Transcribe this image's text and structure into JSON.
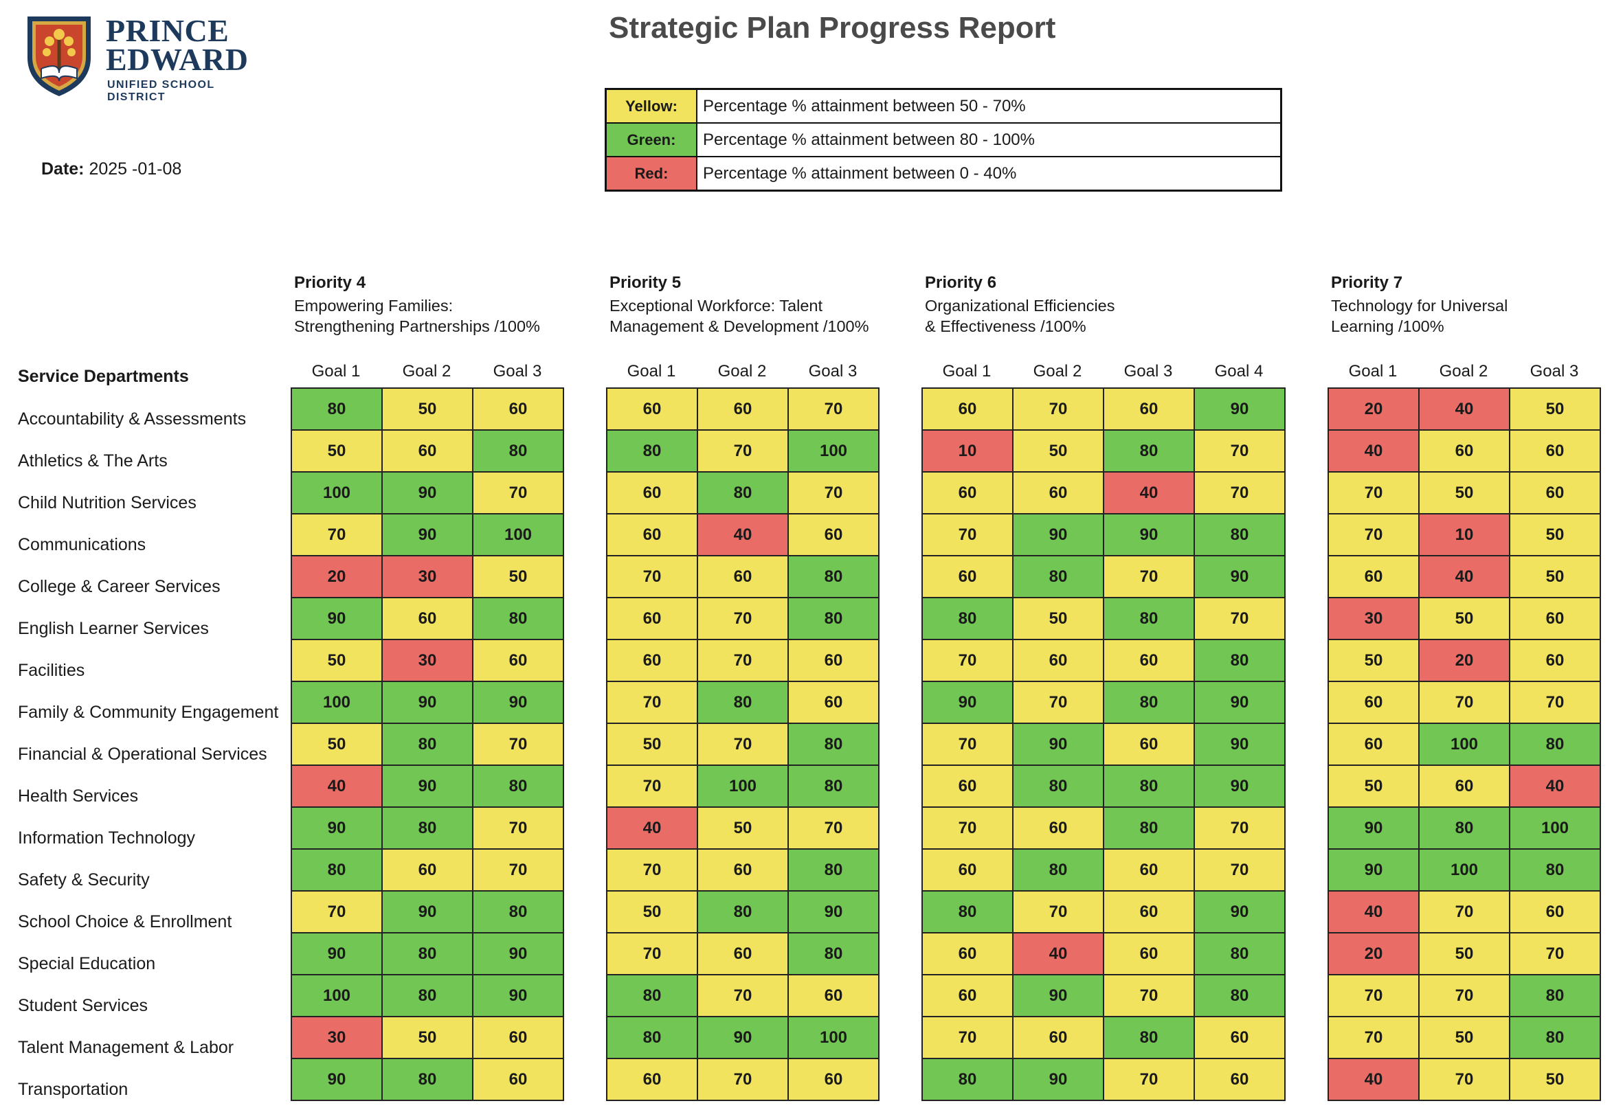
{
  "logo": {
    "line1": "PRINCE",
    "line2": "EDWARD",
    "line3": "UNIFIED SCHOOL DISTRICT"
  },
  "date": {
    "label": "Date:",
    "value": "2025 -01-08"
  },
  "title": "Strategic Plan Progress Report",
  "legend": [
    {
      "key": "Yellow:",
      "text": "Percentage % attainment between 50 - 70%",
      "color": "#f1e35e"
    },
    {
      "key": "Green:",
      "text": "Percentage % attainment between 80 - 100%",
      "color": "#72c653"
    },
    {
      "key": "Red:",
      "text": "Percentage % attainment between 0 - 40%",
      "color": "#ea6c66"
    }
  ],
  "departments_header": "Service Departments",
  "departments": [
    "Accountability & Assessments",
    "Athletics & The Arts",
    "Child Nutrition Services",
    "Communications",
    "College & Career Services",
    "English Learner Services",
    "Facilities",
    "Family & Community Engagement",
    "Financial & Operational Services",
    "Health Services",
    "Information Technology",
    "Safety & Security",
    "School Choice & Enrollment",
    "Special Education",
    "Student Services",
    "Talent Management & Labor",
    "Transportation"
  ],
  "priorities": [
    {
      "title": "Priority 4",
      "desc": [
        "Empowering Families:",
        "Strengthening Partnerships /100%"
      ],
      "goals": [
        "Goal 1",
        "Goal 2",
        "Goal 3"
      ],
      "values": [
        [
          80,
          50,
          60
        ],
        [
          50,
          60,
          80
        ],
        [
          100,
          90,
          70
        ],
        [
          70,
          90,
          100
        ],
        [
          20,
          30,
          50
        ],
        [
          90,
          60,
          80
        ],
        [
          50,
          30,
          60
        ],
        [
          100,
          90,
          90
        ],
        [
          50,
          80,
          70
        ],
        [
          40,
          90,
          80
        ],
        [
          90,
          80,
          70
        ],
        [
          80,
          60,
          70
        ],
        [
          70,
          90,
          80
        ],
        [
          90,
          80,
          90
        ],
        [
          100,
          80,
          90
        ],
        [
          30,
          50,
          60
        ],
        [
          90,
          80,
          60
        ]
      ]
    },
    {
      "title": "Priority 5",
      "desc": [
        "Exceptional Workforce: Talent",
        "Management & Development /100%"
      ],
      "goals": [
        "Goal 1",
        "Goal 2",
        "Goal 3"
      ],
      "values": [
        [
          60,
          60,
          70
        ],
        [
          80,
          70,
          100
        ],
        [
          60,
          80,
          70
        ],
        [
          60,
          40,
          60
        ],
        [
          70,
          60,
          80
        ],
        [
          60,
          70,
          80
        ],
        [
          60,
          70,
          60
        ],
        [
          70,
          80,
          60
        ],
        [
          50,
          70,
          80
        ],
        [
          70,
          100,
          80
        ],
        [
          40,
          50,
          70
        ],
        [
          70,
          60,
          80
        ],
        [
          50,
          80,
          90
        ],
        [
          70,
          60,
          80
        ],
        [
          80,
          70,
          60
        ],
        [
          80,
          90,
          100
        ],
        [
          60,
          70,
          60
        ]
      ]
    },
    {
      "title": "Priority 6",
      "desc": [
        "Organizational Efficiencies",
        "& Effectiveness  /100%"
      ],
      "goals": [
        "Goal 1",
        "Goal 2",
        "Goal 3",
        "Goal 4"
      ],
      "values": [
        [
          60,
          70,
          60,
          90
        ],
        [
          10,
          50,
          80,
          70
        ],
        [
          60,
          60,
          40,
          70
        ],
        [
          70,
          90,
          90,
          80
        ],
        [
          60,
          80,
          70,
          90
        ],
        [
          80,
          50,
          80,
          70
        ],
        [
          70,
          60,
          60,
          80
        ],
        [
          90,
          70,
          80,
          90
        ],
        [
          70,
          90,
          60,
          90
        ],
        [
          60,
          80,
          80,
          90
        ],
        [
          70,
          60,
          80,
          70
        ],
        [
          60,
          80,
          60,
          70
        ],
        [
          80,
          70,
          60,
          90
        ],
        [
          60,
          40,
          60,
          80
        ],
        [
          60,
          90,
          70,
          80
        ],
        [
          70,
          60,
          80,
          60
        ],
        [
          80,
          90,
          70,
          60
        ]
      ]
    },
    {
      "title": "Priority 7",
      "desc": [
        "Technology for Universal",
        "Learning /100%"
      ],
      "goals": [
        "Goal 1",
        "Goal 2",
        "Goal 3"
      ],
      "values": [
        [
          20,
          40,
          50
        ],
        [
          40,
          60,
          60
        ],
        [
          70,
          50,
          60
        ],
        [
          70,
          10,
          50
        ],
        [
          60,
          40,
          50
        ],
        [
          30,
          50,
          60
        ],
        [
          50,
          20,
          60
        ],
        [
          60,
          70,
          70
        ],
        [
          60,
          100,
          80
        ],
        [
          50,
          60,
          40
        ],
        [
          90,
          80,
          100
        ],
        [
          90,
          100,
          80
        ],
        [
          40,
          70,
          60
        ],
        [
          20,
          50,
          70
        ],
        [
          70,
          70,
          80
        ],
        [
          70,
          50,
          80
        ],
        [
          40,
          70,
          50
        ]
      ]
    }
  ]
}
